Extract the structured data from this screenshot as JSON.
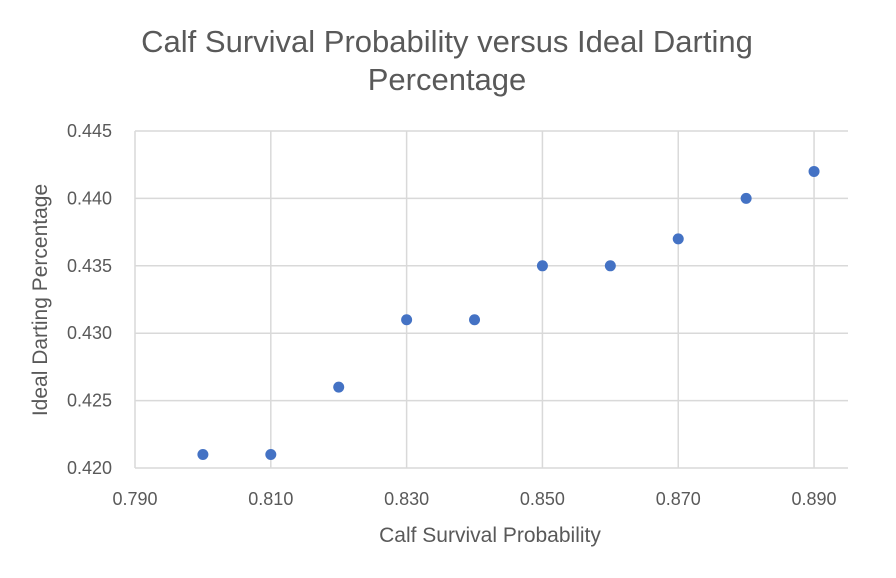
{
  "chart_data": {
    "type": "scatter",
    "title_lines": [
      "Calf Survival Probability versus Ideal Darting",
      "Percentage"
    ],
    "xlabel": "Calf Survival Probability",
    "ylabel": "Ideal Darting Percentage",
    "xlim": [
      0.79,
      0.895
    ],
    "ylim": [
      0.42,
      0.445
    ],
    "x_ticks": [
      "0.790",
      "0.810",
      "0.830",
      "0.850",
      "0.870",
      "0.890"
    ],
    "y_ticks": [
      "0.420",
      "0.425",
      "0.430",
      "0.435",
      "0.440",
      "0.445"
    ],
    "grid": true,
    "marker_color": "#4472C4",
    "gridline_color": "#D9D9D9",
    "series": [
      {
        "x": [
          0.8,
          0.81,
          0.82,
          0.83,
          0.84,
          0.85,
          0.86,
          0.87,
          0.88,
          0.89
        ],
        "y": [
          0.421,
          0.421,
          0.426,
          0.431,
          0.431,
          0.435,
          0.435,
          0.437,
          0.44,
          0.442
        ]
      }
    ]
  }
}
